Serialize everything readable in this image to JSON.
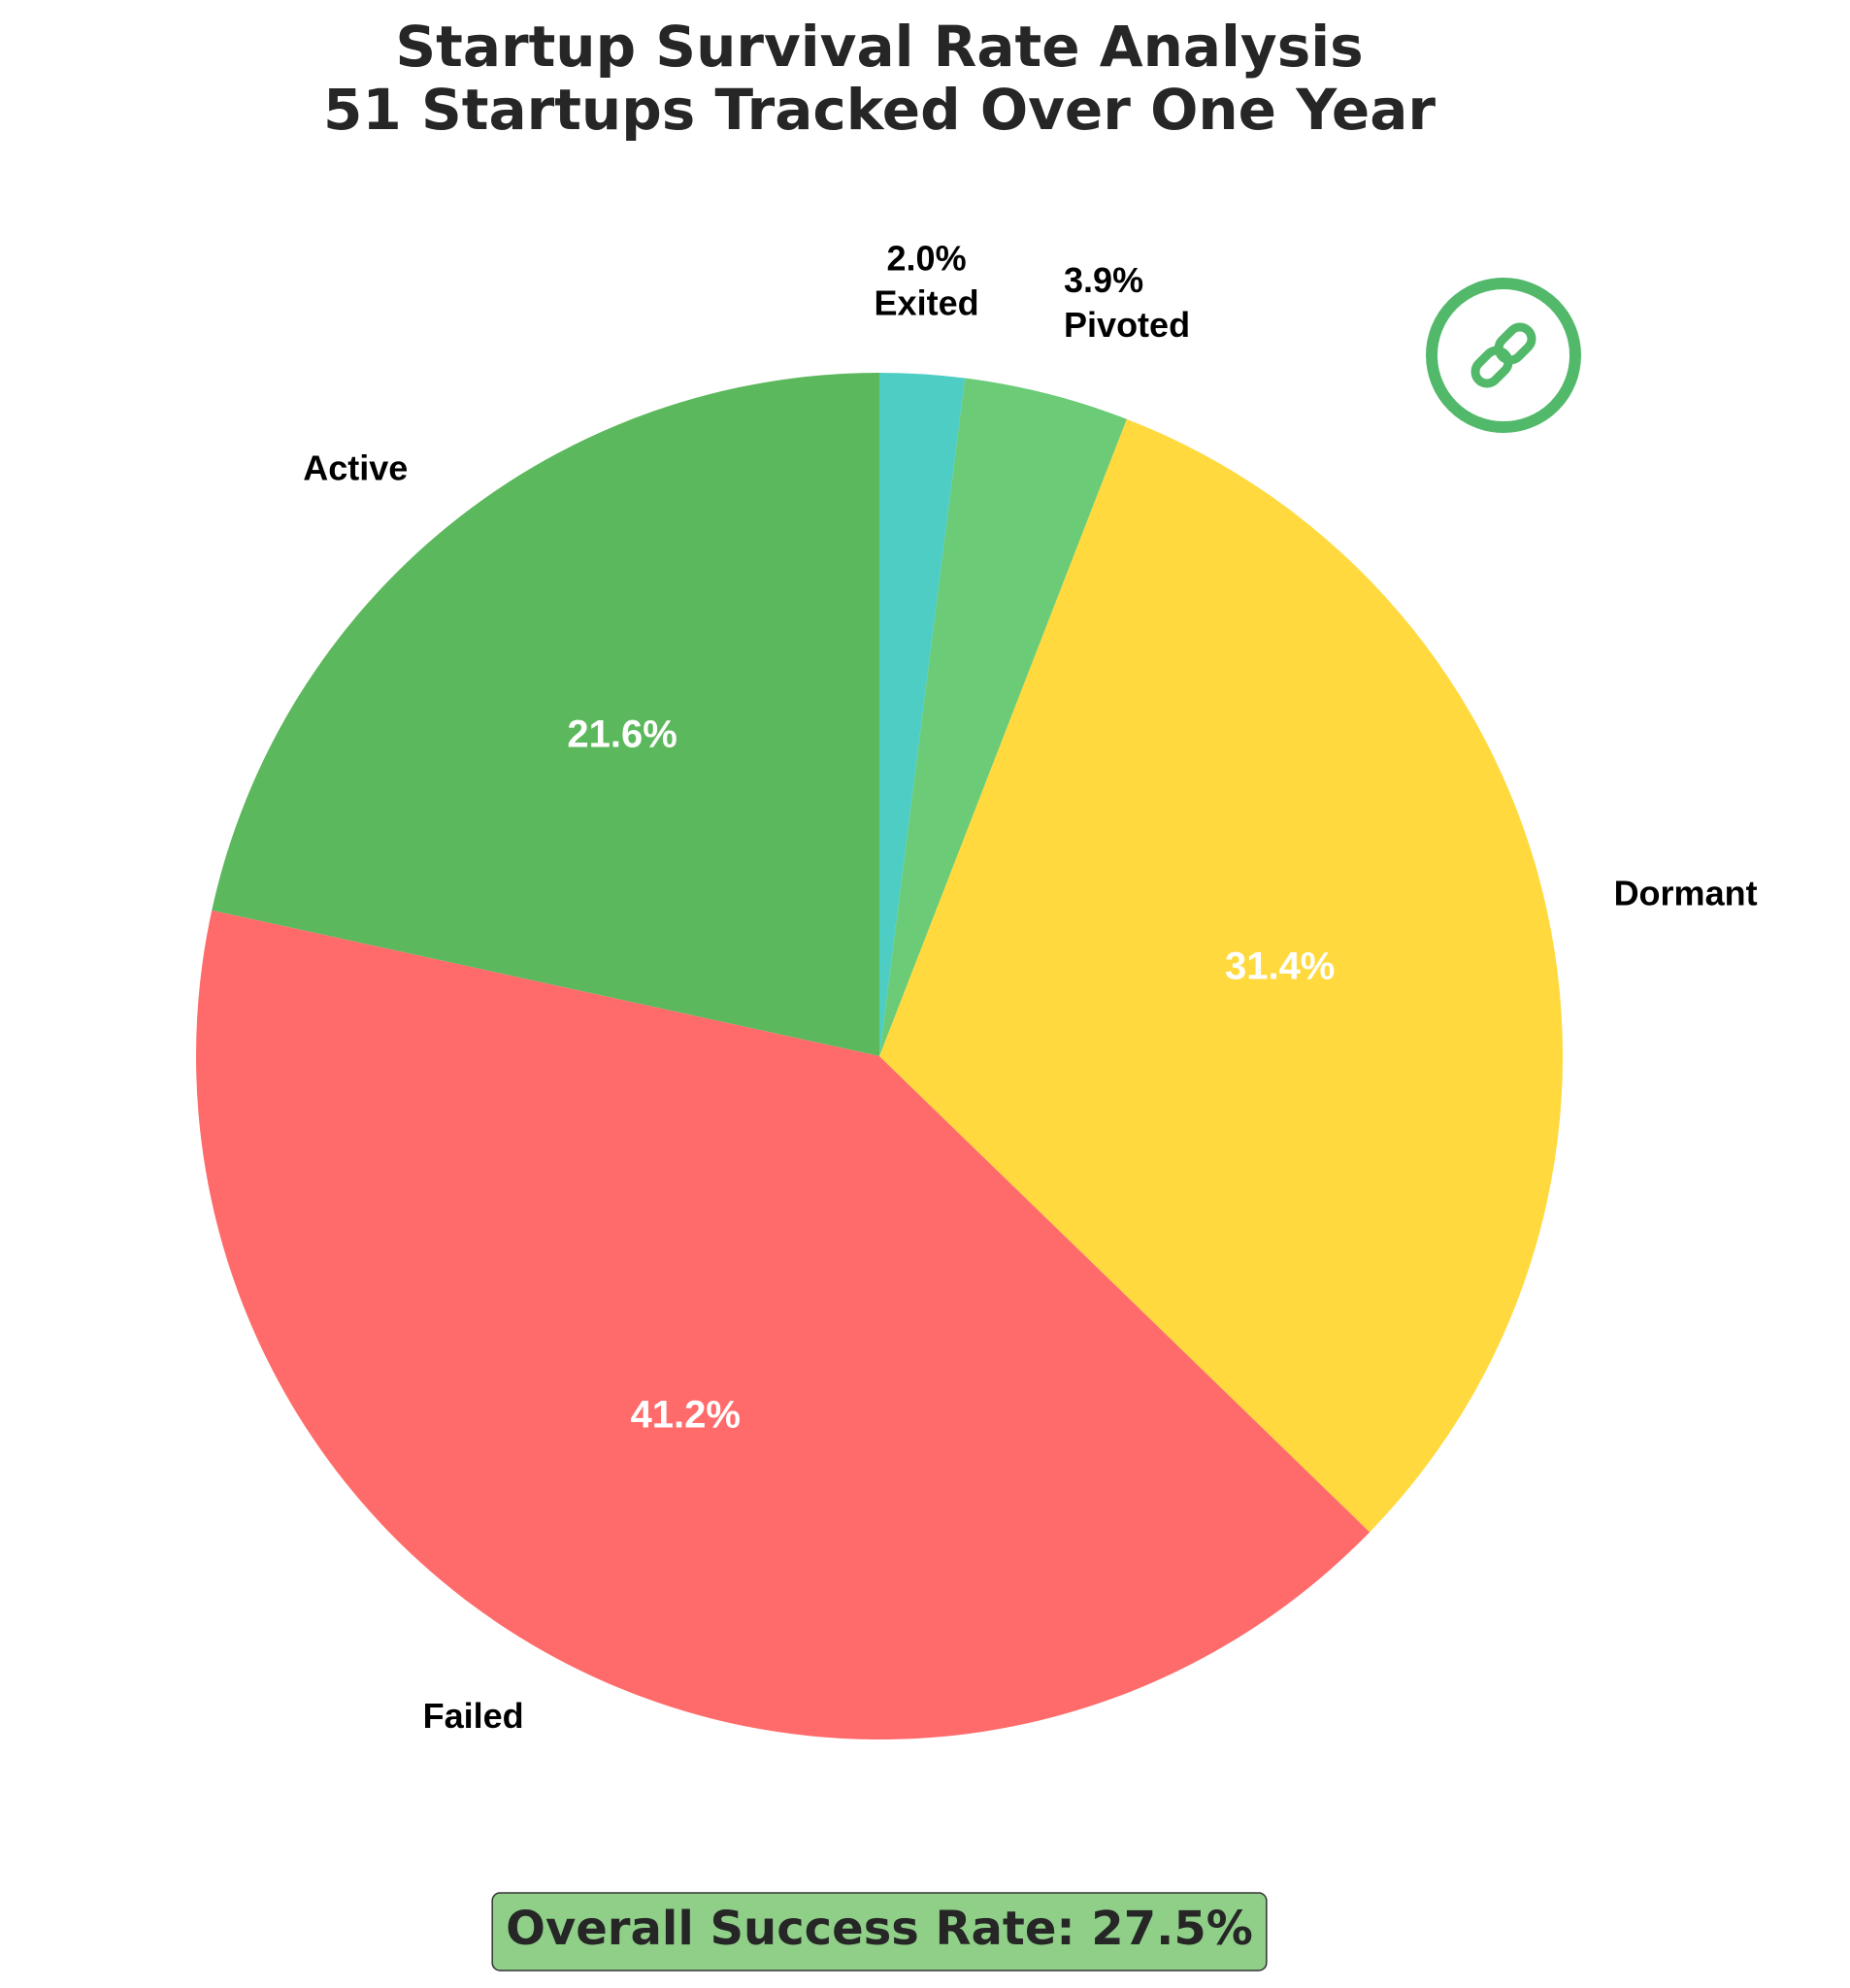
{
  "chart_data": {
    "type": "pie",
    "title": "Startup Survival Rate Analysis",
    "subtitle": "51 Startups Tracked Over One Year",
    "categories": [
      "Active",
      "Failed",
      "Dormant",
      "Pivoted",
      "Exited"
    ],
    "values": [
      21.6,
      41.2,
      31.4,
      3.9,
      2.0
    ],
    "value_labels": [
      "21.6%",
      "41.2%",
      "31.4%",
      "3.9%",
      "2.0%"
    ],
    "colors": [
      "#5cb85c",
      "#ff6b6b",
      "#ffd93d",
      "#6bcb77",
      "#4ecdc4"
    ],
    "annotation": "Overall Success Rate: 27.5%"
  }
}
